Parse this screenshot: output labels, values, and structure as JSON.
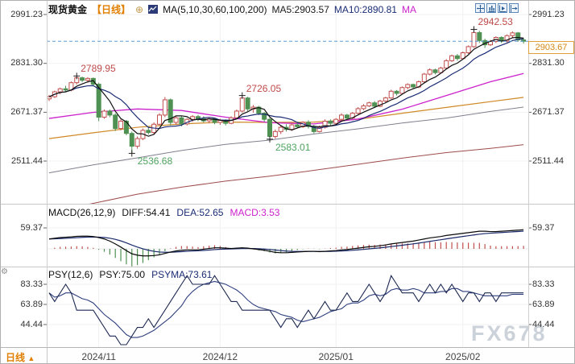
{
  "header": {
    "title": "现货黄金",
    "period": "【日线】",
    "ma_params": "MA(5,10,30,60,100,200)",
    "ma5_label": "MA5:2903.57",
    "ma10_label": "MA10:2890.81",
    "ma30_label": "MA"
  },
  "toolbar": {
    "icons": [
      "crosshair",
      "indicator-panel",
      "play-chart",
      "export"
    ]
  },
  "axes": {
    "price": [
      "2991.23",
      "2831.30",
      "2671.37",
      "2511.44"
    ],
    "macd": "59.37",
    "psy": [
      "83.33",
      "63.89",
      "44.44"
    ]
  },
  "macd_panel": {
    "params": "MACD(26,12,9)",
    "diff_label": "DIFF:54.41",
    "dea_label": "DEA:52.65",
    "macd_label": "MACD:3.53"
  },
  "psy_panel": {
    "params": "PSY(12,6)",
    "psy_label": "PSY:75.00",
    "psyma_label": "PSYMA:73.61"
  },
  "bottom": {
    "period": "日线",
    "arrow": "▲"
  },
  "watermark": "FX678",
  "chart_data": {
    "type": "candlestick",
    "title": "现货黄金",
    "period": "日线",
    "last_price_label": "2903.67",
    "last_price": 2903.67,
    "y_axis": {
      "ticks": [
        2991.23,
        2831.3,
        2671.37,
        2511.44
      ]
    },
    "months": [
      {
        "label": "2024/11",
        "index": 9
      },
      {
        "label": "2024/12",
        "index": 31
      },
      {
        "label": "2025/01",
        "index": 52
      },
      {
        "label": "2025/02",
        "index": 75
      }
    ],
    "annotations": [
      {
        "label": "2789.95",
        "index": 5,
        "side": "high",
        "color": "red"
      },
      {
        "label": "2536.68",
        "index": 15,
        "side": "low",
        "color": "green"
      },
      {
        "label": "2726.05",
        "index": 35,
        "side": "high",
        "color": "red"
      },
      {
        "label": "2583.01",
        "index": 40,
        "side": "low",
        "color": "green"
      },
      {
        "label": "2942.53",
        "index": 77,
        "side": "high",
        "color": "red"
      }
    ],
    "colors": {
      "up": "#c0504d",
      "down": "#4f9153",
      "ma5": "#111111",
      "ma10": "#1b2c74",
      "ma30": "#cc22cc",
      "ma60": "#cf8a26",
      "ma100": "#80808e",
      "ma200": "#9e4b4b",
      "last_line": "#5b9bd5",
      "diff": "#0a0a0a",
      "dea": "#1a2a6b",
      "psy": "#1e2a52",
      "psyma": "#2e3f7e",
      "hist_up": "#c0504d",
      "hist_down": "#4f9153"
    },
    "candles": [
      [
        2715,
        2728,
        2708,
        2722
      ],
      [
        2722,
        2742,
        2718,
        2738
      ],
      [
        2738,
        2752,
        2730,
        2748
      ],
      [
        2748,
        2758,
        2738,
        2744
      ],
      [
        2744,
        2772,
        2740,
        2768
      ],
      [
        2768,
        2789.95,
        2762,
        2784
      ],
      [
        2784,
        2788,
        2770,
        2776
      ],
      [
        2776,
        2786,
        2768,
        2782
      ],
      [
        2782,
        2785,
        2758,
        2763
      ],
      [
        2763,
        2768,
        2642,
        2655
      ],
      [
        2655,
        2680,
        2650,
        2675
      ],
      [
        2675,
        2680,
        2655,
        2662
      ],
      [
        2662,
        2668,
        2610,
        2618
      ],
      [
        2618,
        2648,
        2612,
        2642
      ],
      [
        2642,
        2646,
        2596,
        2602
      ],
      [
        2602,
        2608,
        2536.68,
        2560
      ],
      [
        2560,
        2592,
        2552,
        2585
      ],
      [
        2585,
        2618,
        2580,
        2612
      ],
      [
        2612,
        2622,
        2598,
        2605
      ],
      [
        2605,
        2638,
        2600,
        2632
      ],
      [
        2632,
        2668,
        2628,
        2662
      ],
      [
        2662,
        2721,
        2655,
        2712
      ],
      [
        2712,
        2716,
        2628,
        2638
      ],
      [
        2638,
        2660,
        2630,
        2653
      ],
      [
        2653,
        2658,
        2625,
        2633
      ],
      [
        2633,
        2652,
        2628,
        2648
      ],
      [
        2648,
        2662,
        2640,
        2657
      ],
      [
        2657,
        2663,
        2642,
        2650
      ],
      [
        2650,
        2658,
        2638,
        2643
      ],
      [
        2643,
        2655,
        2635,
        2650
      ],
      [
        2650,
        2653,
        2632,
        2638
      ],
      [
        2638,
        2650,
        2630,
        2645
      ],
      [
        2645,
        2648,
        2628,
        2635
      ],
      [
        2635,
        2658,
        2632,
        2653
      ],
      [
        2653,
        2680,
        2648,
        2675
      ],
      [
        2675,
        2726.05,
        2670,
        2718
      ],
      [
        2718,
        2722,
        2675,
        2682
      ],
      [
        2682,
        2695,
        2670,
        2688
      ],
      [
        2688,
        2692,
        2662,
        2668
      ],
      [
        2668,
        2672,
        2640,
        2648
      ],
      [
        2648,
        2652,
        2583.01,
        2592
      ],
      [
        2592,
        2615,
        2585,
        2608
      ],
      [
        2608,
        2628,
        2600,
        2622
      ],
      [
        2622,
        2632,
        2608,
        2615
      ],
      [
        2615,
        2635,
        2610,
        2630
      ],
      [
        2630,
        2640,
        2618,
        2624
      ],
      [
        2624,
        2642,
        2620,
        2638
      ],
      [
        2638,
        2645,
        2618,
        2625
      ],
      [
        2625,
        2630,
        2602,
        2608
      ],
      [
        2608,
        2628,
        2605,
        2622
      ],
      [
        2622,
        2648,
        2618,
        2642
      ],
      [
        2642,
        2648,
        2628,
        2635
      ],
      [
        2635,
        2652,
        2630,
        2648
      ],
      [
        2648,
        2668,
        2645,
        2662
      ],
      [
        2662,
        2666,
        2645,
        2652
      ],
      [
        2652,
        2672,
        2648,
        2668
      ],
      [
        2668,
        2688,
        2665,
        2683
      ],
      [
        2683,
        2698,
        2678,
        2692
      ],
      [
        2692,
        2706,
        2688,
        2702
      ],
      [
        2702,
        2708,
        2685,
        2691
      ],
      [
        2691,
        2712,
        2688,
        2708
      ],
      [
        2708,
        2722,
        2702,
        2718
      ],
      [
        2718,
        2745,
        2715,
        2740
      ],
      [
        2740,
        2744,
        2726,
        2733
      ],
      [
        2733,
        2756,
        2730,
        2752
      ],
      [
        2752,
        2766,
        2746,
        2762
      ],
      [
        2762,
        2765,
        2748,
        2754
      ],
      [
        2754,
        2775,
        2750,
        2771
      ],
      [
        2771,
        2800,
        2768,
        2796
      ],
      [
        2796,
        2815,
        2792,
        2810
      ],
      [
        2810,
        2814,
        2795,
        2801
      ],
      [
        2801,
        2820,
        2798,
        2816
      ],
      [
        2816,
        2845,
        2812,
        2840
      ],
      [
        2840,
        2860,
        2836,
        2856
      ],
      [
        2856,
        2862,
        2840,
        2847
      ],
      [
        2847,
        2870,
        2844,
        2866
      ],
      [
        2866,
        2890,
        2862,
        2886
      ],
      [
        2886,
        2942.53,
        2882,
        2932
      ],
      [
        2932,
        2938,
        2898,
        2906
      ],
      [
        2906,
        2912,
        2882,
        2892
      ],
      [
        2892,
        2908,
        2888,
        2903
      ],
      [
        2903,
        2920,
        2898,
        2916
      ],
      [
        2916,
        2920,
        2898,
        2904
      ],
      [
        2904,
        2926,
        2900,
        2922
      ],
      [
        2922,
        2936,
        2916,
        2931
      ],
      [
        2931,
        2934,
        2902,
        2908
      ],
      [
        2908,
        2915,
        2896,
        2903.67
      ]
    ],
    "ma_sample_indices": [
      0,
      8,
      16,
      24,
      32,
      40,
      48,
      56,
      64,
      72,
      80,
      86
    ],
    "ma_series": {
      "ma30": [
        2651,
        2671,
        2682,
        2677,
        2655,
        2637,
        2633,
        2649,
        2681,
        2726,
        2771,
        2798
      ],
      "ma60": [
        2585,
        2604,
        2622,
        2633,
        2639,
        2638,
        2639,
        2648,
        2668,
        2687,
        2706,
        2720
      ],
      "ma100": [
        2473,
        2499,
        2522,
        2546,
        2566,
        2580,
        2600,
        2617,
        2636,
        2652,
        2674,
        2688
      ],
      "ma200": [
        2345,
        2373,
        2403,
        2426,
        2446,
        2462,
        2481,
        2501,
        2521,
        2539,
        2553,
        2565
      ]
    },
    "macd": {
      "params": [
        26,
        12,
        9
      ],
      "final": {
        "diff": 54.41,
        "dea": 52.65,
        "macd": 3.53
      },
      "scale_label": 59.37,
      "diff": [
        28,
        30,
        32,
        33,
        34,
        35.5,
        36,
        36,
        35,
        32,
        28,
        22,
        14,
        5,
        -5,
        -14,
        -18,
        -20,
        -20,
        -19,
        -17,
        -13,
        -9,
        -6,
        -4,
        -3,
        -3,
        -3,
        -1,
        1,
        3,
        3,
        2,
        1,
        2,
        3,
        2,
        0,
        -2,
        -4,
        -7,
        -10,
        -11,
        -11,
        -10,
        -9,
        -8,
        -7,
        -7,
        -8,
        -7,
        -6,
        -5,
        -3,
        -2,
        0,
        2,
        4,
        6,
        7,
        9,
        11,
        14,
        16,
        18,
        20,
        22,
        25,
        28,
        31,
        33,
        35,
        38,
        40,
        42,
        44,
        46,
        48,
        50,
        50,
        49,
        49,
        50,
        51,
        52,
        53,
        54.41
      ]
    },
    "psy": {
      "params": [
        12,
        6
      ],
      "final": {
        "psy": 75.0,
        "psyma": 73.61
      },
      "scale_labels": [
        83.33,
        63.89,
        44.44
      ],
      "values": [
        75,
        66.67,
        75,
        83.33,
        75,
        58.33,
        58.33,
        58.33,
        58.33,
        50,
        41.67,
        33.33,
        33.33,
        25,
        25,
        33.33,
        41.67,
        41.67,
        50,
        41.67,
        50,
        58.33,
        66.67,
        75,
        83.33,
        91.67,
        83.33,
        83.33,
        83.33,
        83.33,
        91.67,
        83.33,
        75,
        66.67,
        66.67,
        58.33,
        58.33,
        58.33,
        58.33,
        58.33,
        58.33,
        50,
        41.67,
        50,
        50,
        41.67,
        50,
        58.33,
        50,
        58.33,
        66.67,
        58.33,
        58.33,
        66.67,
        75,
        66.67,
        66.67,
        75,
        83.33,
        75,
        66.67,
        75,
        91.67,
        83.33,
        75,
        75,
        75,
        66.67,
        75,
        83.33,
        75,
        83.33,
        75,
        83.33,
        75,
        66.67,
        75,
        75,
        66.67,
        75,
        75,
        66.67,
        75,
        75,
        75,
        75,
        75
      ]
    }
  }
}
